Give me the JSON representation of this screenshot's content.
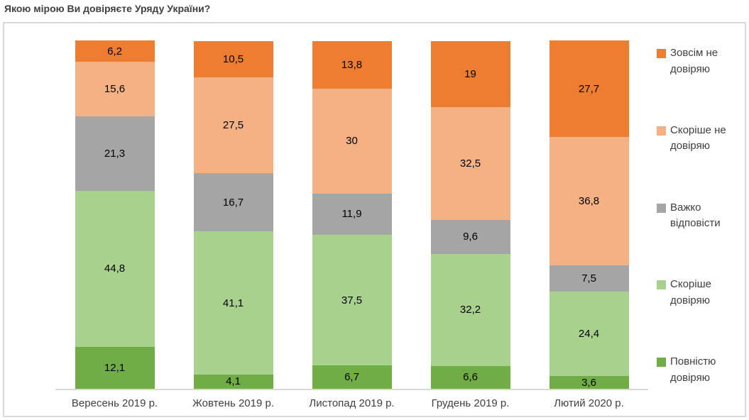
{
  "title": "Якою мірою Ви довіряєте Уряду України?",
  "chart_data": {
    "type": "bar",
    "stacked": true,
    "orientation": "vertical",
    "title": "Якою мірою Ви довіряєте Уряду України?",
    "categories": [
      "Вересень 2019 р.",
      "Жовтень 2019 р.",
      "Листопад 2019 р.",
      "Грудень 2019 р.",
      "Лютий 2020 р."
    ],
    "series": [
      {
        "name": "Повністю довіряю",
        "color": "#70AD47",
        "values": [
          12.1,
          4.1,
          6.7,
          6.6,
          3.6
        ],
        "labels": [
          "12,1",
          "4,1",
          "6,7",
          "6,6",
          "3,6"
        ]
      },
      {
        "name": "Скоріше довіряю",
        "color": "#A9D18E",
        "values": [
          44.8,
          41.1,
          37.5,
          32.2,
          24.4
        ],
        "labels": [
          "44,8",
          "41,1",
          "37,5",
          "32,2",
          "24,4"
        ]
      },
      {
        "name": "Важко відповісти",
        "color": "#A5A5A5",
        "values": [
          21.3,
          16.7,
          11.9,
          9.6,
          7.5
        ],
        "labels": [
          "21,3",
          "16,7",
          "11,9",
          "9,6",
          "7,5"
        ]
      },
      {
        "name": "Скоріше  не довіряю",
        "color": "#F4B183",
        "values": [
          15.6,
          27.5,
          30,
          32.5,
          36.8
        ],
        "labels": [
          "15,6",
          "27,5",
          "30",
          "32,5",
          "36,8"
        ]
      },
      {
        "name": "Зовсім не довіряю",
        "color": "#ED7D31",
        "values": [
          6.2,
          10.5,
          13.8,
          19,
          27.7
        ],
        "labels": [
          "6,2",
          "10,5",
          "13,8",
          "19",
          "27,7"
        ]
      }
    ],
    "legend": {
      "position": "right",
      "order_top_to_bottom": [
        "Зовсім не довіряю",
        "Скоріше  не довіряю",
        "Важко відповісти",
        "Скоріше довіряю",
        "Повністю довіряю"
      ]
    },
    "ylim": [
      0,
      100
    ],
    "grid": false,
    "value_label_color": "#000000",
    "frame_color": "#D9D9D9",
    "axis_color": "#D9D9D9"
  }
}
